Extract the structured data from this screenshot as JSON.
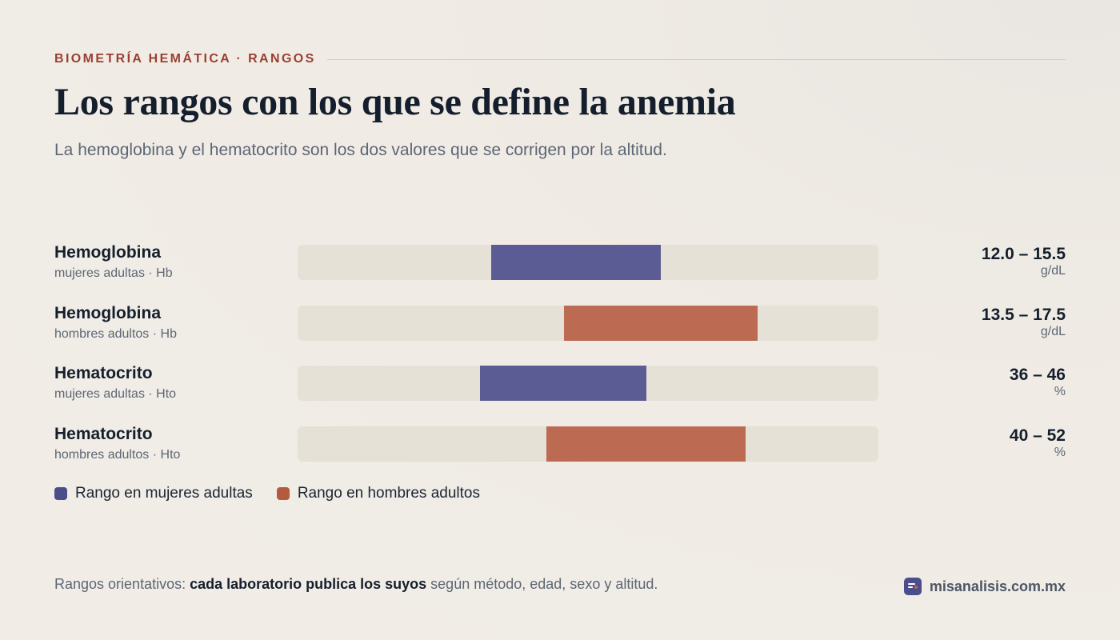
{
  "header": {
    "eyebrow": "BIOMETRÍA HEMÁTICA · RANGOS",
    "title": "Los rangos con los que se define la anemia",
    "subtitle": "La hemoglobina y el hematocrito son los dos valores que se corrigen por la altitud."
  },
  "colors": {
    "women": "#5b5c94",
    "men": "#bc6a51",
    "track": "#e5e1d6",
    "accent": "#9a3f30"
  },
  "chart_data": {
    "type": "bar",
    "title": "Los rangos con los que se define la anemia",
    "rows": [
      {
        "name": "Hemoglobina",
        "sub": "mujeres adultas · Hb",
        "group": "women",
        "range_label": "12.0 – 15.5",
        "unit": "g/dL",
        "low": 12.0,
        "high": 15.5,
        "axis_min": 8,
        "axis_max": 20
      },
      {
        "name": "Hemoglobina",
        "sub": "hombres adultos · Hb",
        "group": "men",
        "range_label": "13.5 – 17.5",
        "unit": "g/dL",
        "low": 13.5,
        "high": 17.5,
        "axis_min": 8,
        "axis_max": 20
      },
      {
        "name": "Hematocrito",
        "sub": "mujeres adultas · Hto",
        "group": "women",
        "range_label": "36 – 46",
        "unit": "%",
        "low": 36,
        "high": 46,
        "axis_min": 25,
        "axis_max": 60
      },
      {
        "name": "Hematocrito",
        "sub": "hombres adultos · Hto",
        "group": "men",
        "range_label": "40 – 52",
        "unit": "%",
        "low": 40,
        "high": 52,
        "axis_min": 25,
        "axis_max": 60
      }
    ],
    "legend": [
      {
        "label": "Rango en mujeres adultas",
        "group": "women"
      },
      {
        "label": "Rango en hombres adultos",
        "group": "men"
      }
    ],
    "legend_position": "bottom-left",
    "grid": false
  },
  "footer": {
    "note_prefix": "Rangos orientativos: ",
    "note_bold": "cada laboratorio publica los suyos",
    "note_suffix": " según método, edad, sexo y altitud.",
    "brand_icon": "report-icon",
    "brand": "misanalisis.com.mx"
  }
}
